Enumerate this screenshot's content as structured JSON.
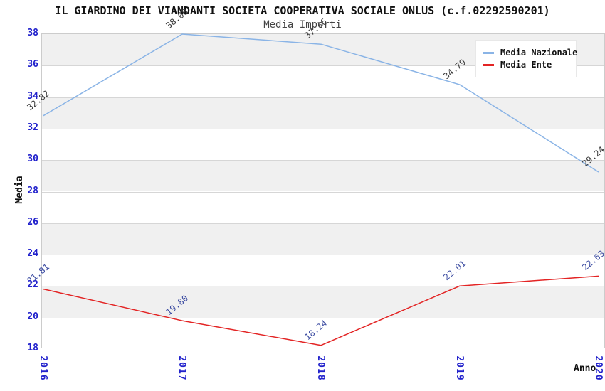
{
  "title": "IL GIARDINO DEI VIANDANTI SOCIETA COOPERATIVA SOCIALE ONLUS (c.f.02292590201)",
  "subtitle": "Media Importi",
  "ylabel": "Media",
  "xlabel": "Anno",
  "legend": {
    "items": [
      {
        "label": "Media Nazionale",
        "color": "#8ab4e6"
      },
      {
        "label": "Media Ente",
        "color": "#e32424"
      }
    ]
  },
  "colors": {
    "tick_label": "#2222cc",
    "grid_line": "#d6d6d6",
    "band_gray": "#f0f0f0",
    "band_white": "#ffffff",
    "plot_border": "#cccccc"
  },
  "chart_data": {
    "type": "line",
    "x": [
      2016,
      2017,
      2018,
      2019,
      2020
    ],
    "x_tick_labels": [
      "2016",
      "2017",
      "2018",
      "2019",
      "2020"
    ],
    "y_tick_labels": [
      "38",
      "36",
      "34",
      "32",
      "30",
      "28",
      "26",
      "24",
      "22",
      "20",
      "18"
    ],
    "ylim": [
      18,
      38
    ],
    "ytick_step": 2,
    "grid": true,
    "alternating_bands": true,
    "legend_position": "top-right",
    "title": "IL GIARDINO DEI VIANDANTI SOCIETA COOPERATIVA SOCIALE ONLUS (c.f.02292590201)",
    "subtitle": "Media Importi",
    "xlabel": "Anno",
    "ylabel": "Media",
    "series": [
      {
        "name": "Media Nazionale",
        "color": "#8ab4e6",
        "label_color": "#3a3a3a",
        "values": [
          32.82,
          38.0,
          37.36,
          34.79,
          29.24
        ],
        "labels": [
          "32.82",
          "38.00",
          "37.36",
          "34.79",
          "29.24"
        ]
      },
      {
        "name": "Media Ente",
        "color": "#e32424",
        "label_color": "#3b4ba1",
        "values": [
          21.81,
          19.8,
          18.24,
          22.01,
          22.63
        ],
        "labels": [
          "21.81",
          "19.80",
          "18.24",
          "22.01",
          "22.63"
        ]
      }
    ]
  }
}
